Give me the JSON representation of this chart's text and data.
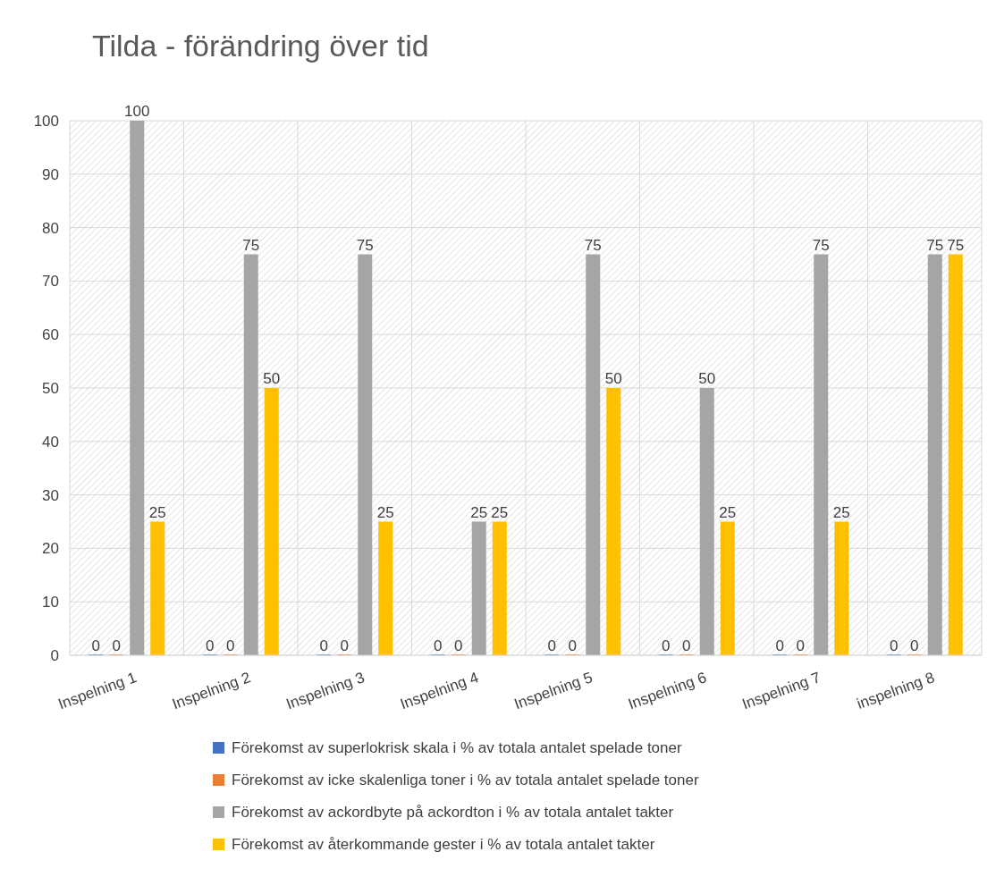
{
  "chart_data": {
    "type": "bar",
    "title": "Tilda - förändring över tid",
    "categories": [
      "Inspelning 1",
      "Inspelning 2",
      "Inspelning 3",
      "Inspelning 4",
      "Inspelning 5",
      "Inspelning 6",
      "Inspelning 7",
      "inspelning 8"
    ],
    "series": [
      {
        "name": "Förekomst av superlokrisk skala i % av totala antalet spelade toner",
        "color": "#4472c4",
        "values": [
          0,
          0,
          0,
          0,
          0,
          0,
          0,
          0
        ]
      },
      {
        "name": "Förekomst av icke skalenliga toner i % av totala antalet spelade toner",
        "color": "#ed7d31",
        "values": [
          0,
          0,
          0,
          0,
          0,
          0,
          0,
          0
        ]
      },
      {
        "name": "Förekomst av ackordbyte på ackordton i % av totala antalet takter",
        "color": "#a5a5a5",
        "values": [
          100,
          75,
          75,
          25,
          75,
          50,
          75,
          75
        ]
      },
      {
        "name": "Förekomst av återkommande gester i % av totala antalet takter",
        "color": "#ffc000",
        "values": [
          25,
          50,
          25,
          25,
          50,
          25,
          25,
          75
        ]
      }
    ],
    "ylim": [
      0,
      100
    ],
    "yticks": [
      0,
      10,
      20,
      30,
      40,
      50,
      60,
      70,
      80,
      90,
      100
    ],
    "grid": true,
    "legend": "bottom",
    "data_labels": true
  }
}
